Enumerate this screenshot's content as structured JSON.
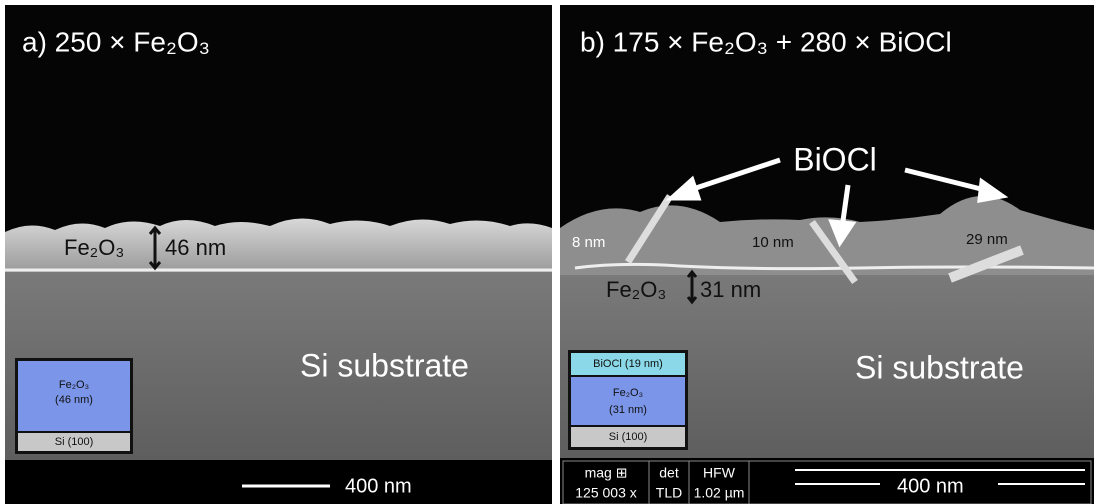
{
  "panels": [
    {
      "title": "a) 250 × Fe₂O₃",
      "layer_label": "Fe₂O₃",
      "thickness": "46 nm",
      "substrate": "Si substrate",
      "inset": {
        "film": "Fe₂O₃",
        "film_thickness": "(46 nm)",
        "base": "Si (100)"
      },
      "scale_bar": "400 nm"
    },
    {
      "title": "b) 175 × Fe₂O₃ + 280 × BiOCl",
      "callout": "BiOCl",
      "widths": [
        "8 nm",
        "10 nm",
        "29 nm"
      ],
      "layer_label": "Fe₂O₃",
      "thickness": "31 nm",
      "substrate": "Si substrate",
      "inset": {
        "top": "BiOCl (19 nm)",
        "film": "Fe₂O₃",
        "film_thickness": "(31 nm)",
        "base": "Si (100)"
      },
      "info": {
        "mag_label": "mag ⊞",
        "mag": "125 003 x",
        "det_label": "det",
        "det": "TLD",
        "hfw_label": "HFW",
        "hfw": "1.02 µm"
      },
      "scale_bar": "400 nm"
    }
  ]
}
